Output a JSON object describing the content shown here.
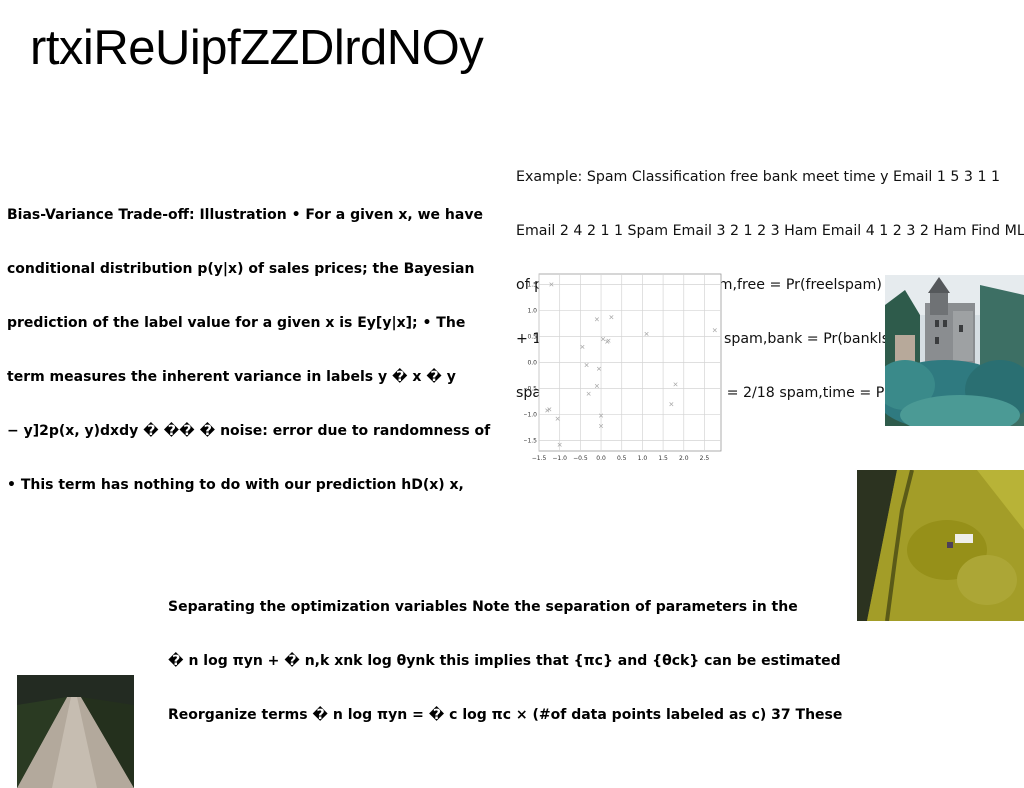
{
  "title": "rtxiReUipfZZDlrdNOy",
  "bias_block": {
    "lines": [
      "Bias-Variance Trade-off: Illustration • For a given x, we have",
      "conditional distribution p(y|x) of sales prices; the Bayesian",
      "prediction of the label value for a given x is Ey[y|x]; • The",
      "term measures the inherent variance in labels y � x � y",
      "− y]2p(x, y)dxdy � �� � noise: error due to randomness of",
      "• This term has nothing to do with our prediction hD(x) x,"
    ]
  },
  "spam_block": {
    "lines": [
      "Example: Spam Classification free bank meet time y Email 1 5 3 1 1",
      "Email 2 4 2 1 1 Spam Email 3 2 1 2 3 Ham Email 4 1 2 3 2 Ham Find ML",
      "of parameters πc and ck spam,free = Pr(freelspam) = (5 + 4)/(5 + 3 +",
      "+ 1 + 4 + 2 + 1 + 1) = 9/18 spam,bank = Pr(banklspam) = (3 + 2)/18 =",
      "spam,meet = Pr(meetlspam) = 2/18 spam,time = Pr(timelspam) ="
    ]
  },
  "separation_block": {
    "lines": [
      "Separating the optimization variables Note the separation of parameters in the",
      "� n log πyn + � n,k xnk log θynk this implies that {πc} and {θck} can be estimated",
      "Reorganize terms � n log πyn = � c log πc × (#of data points labeled as c) 37 These"
    ]
  },
  "chart_data": {
    "type": "scatter",
    "title": "",
    "xlabel": "",
    "ylabel": "",
    "xlim": [
      -1.5,
      2.9
    ],
    "ylim": [
      -1.7,
      1.7
    ],
    "grid": true,
    "marker": "x",
    "x_ticks": [
      "−1.5",
      "−1.0",
      "−0.5",
      "0.0",
      "0.5",
      "1.0",
      "1.5",
      "2.0",
      "2.5"
    ],
    "y_ticks": [
      "1.5",
      "1.0",
      "0.5",
      "0.0",
      "−0.5",
      "−1.0",
      "−1.5"
    ],
    "points": [
      {
        "x": -1.2,
        "y": 1.5
      },
      {
        "x": -0.1,
        "y": 0.83
      },
      {
        "x": 0.25,
        "y": 0.87
      },
      {
        "x": 1.1,
        "y": 0.55
      },
      {
        "x": 2.75,
        "y": 0.62
      },
      {
        "x": -0.45,
        "y": 0.3
      },
      {
        "x": 0.05,
        "y": 0.45
      },
      {
        "x": 0.15,
        "y": 0.4
      },
      {
        "x": 0.18,
        "y": 0.42
      },
      {
        "x": -0.35,
        "y": -0.05
      },
      {
        "x": -0.05,
        "y": -0.12
      },
      {
        "x": -0.1,
        "y": -0.45
      },
      {
        "x": -0.3,
        "y": -0.6
      },
      {
        "x": 1.8,
        "y": -0.42
      },
      {
        "x": 1.7,
        "y": -0.8
      },
      {
        "x": -1.3,
        "y": -0.92
      },
      {
        "x": -1.25,
        "y": -0.9
      },
      {
        "x": -1.05,
        "y": -1.08
      },
      {
        "x": 0.0,
        "y": -1.02
      },
      {
        "x": 0.0,
        "y": -1.22
      },
      {
        "x": -1.0,
        "y": -1.58
      }
    ]
  },
  "colors": {
    "castle_sky": "#d9e1e6",
    "castle_tree": "#2f7a80",
    "aerial_field": "#a6a02a",
    "road_surface": "#b5ab9f"
  }
}
